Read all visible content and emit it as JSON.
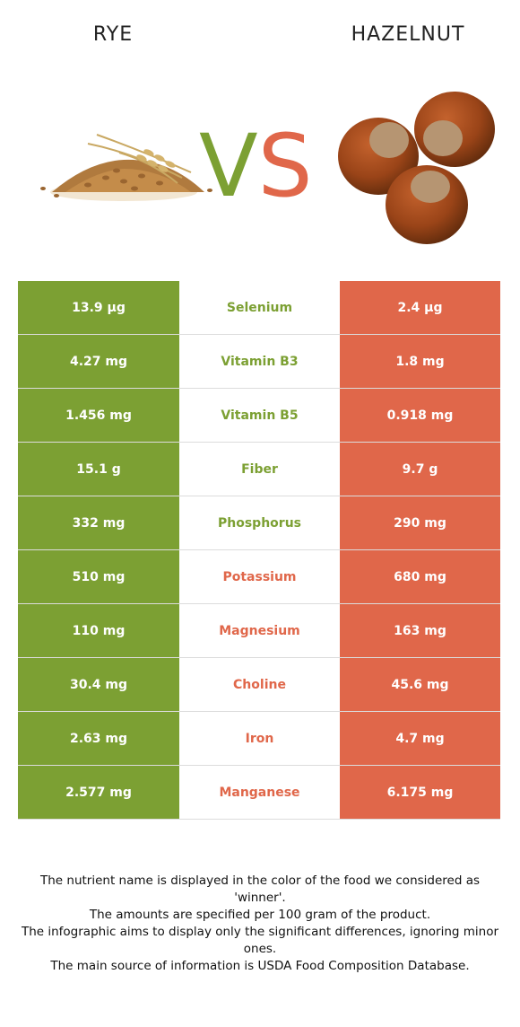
{
  "header": {
    "left_food": "RYE",
    "right_food": "HAZELNUT",
    "vs_v": "V",
    "vs_s": "S"
  },
  "colors": {
    "left_accent": "#7ca033",
    "right_accent": "#e0674a"
  },
  "rows": [
    {
      "left": "13.9 µg",
      "name": "Selenium",
      "right": "2.4 µg",
      "winner": "left"
    },
    {
      "left": "4.27 mg",
      "name": "Vitamin B3",
      "right": "1.8 mg",
      "winner": "left"
    },
    {
      "left": "1.456 mg",
      "name": "Vitamin B5",
      "right": "0.918 mg",
      "winner": "left"
    },
    {
      "left": "15.1 g",
      "name": "Fiber",
      "right": "9.7 g",
      "winner": "left"
    },
    {
      "left": "332 mg",
      "name": "Phosphorus",
      "right": "290 mg",
      "winner": "left"
    },
    {
      "left": "510 mg",
      "name": "Potassium",
      "right": "680 mg",
      "winner": "right"
    },
    {
      "left": "110 mg",
      "name": "Magnesium",
      "right": "163 mg",
      "winner": "right"
    },
    {
      "left": "30.4 mg",
      "name": "Choline",
      "right": "45.6 mg",
      "winner": "right"
    },
    {
      "left": "2.63 mg",
      "name": "Iron",
      "right": "4.7 mg",
      "winner": "right"
    },
    {
      "left": "2.577 mg",
      "name": "Manganese",
      "right": "6.175 mg",
      "winner": "right"
    }
  ],
  "footnote": [
    "The nutrient name is displayed in the color of the food we considered as 'winner'.",
    "The amounts are specified per 100 gram of the product.",
    "The infographic aims to display only the significant differences, ignoring minor ones.",
    "The main source of information is USDA Food Composition Database."
  ]
}
